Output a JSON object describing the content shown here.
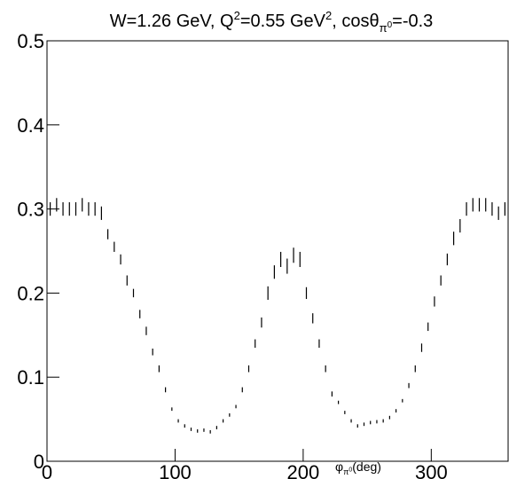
{
  "chart_data": {
    "type": "errorbar",
    "title": [
      {
        "text": "W=1.26 GeV, Q",
        "style": "normal"
      },
      {
        "text": "2",
        "style": "sup"
      },
      {
        "text": "=0.55 GeV",
        "style": "normal"
      },
      {
        "text": "2",
        "style": "sup"
      },
      {
        "text": ", cosθ",
        "style": "normal"
      },
      {
        "text": "π",
        "style": "sub"
      },
      {
        "text": "0",
        "style": "subsup"
      },
      {
        "text": "=-0.3",
        "style": "normal"
      }
    ],
    "x_label": [
      {
        "text": "φ",
        "style": "normal"
      },
      {
        "text": "π",
        "style": "sub"
      },
      {
        "text": "0",
        "style": "subsup"
      },
      {
        "text": "(deg)",
        "style": "normal"
      }
    ],
    "x": [
      2.5,
      7.5,
      12.5,
      17.5,
      22.5,
      27.5,
      32.5,
      37.5,
      42.5,
      47.5,
      52.5,
      57.5,
      62.5,
      67.5,
      72.5,
      77.5,
      82.5,
      87.5,
      92.5,
      97.5,
      102.5,
      107.5,
      112.5,
      117.5,
      122.5,
      127.5,
      132.5,
      137.5,
      142.5,
      147.5,
      152.5,
      157.5,
      162.5,
      167.5,
      172.5,
      177.5,
      182.5,
      187.5,
      192.5,
      197.5,
      202.5,
      207.5,
      212.5,
      217.5,
      222.5,
      227.5,
      232.5,
      237.5,
      242.5,
      247.5,
      252.5,
      257.5,
      262.5,
      267.5,
      272.5,
      277.5,
      282.5,
      287.5,
      292.5,
      297.5,
      302.5,
      307.5,
      312.5,
      317.5,
      322.5,
      327.5,
      332.5,
      337.5,
      342.5,
      347.5,
      352.5,
      357.5
    ],
    "values": [
      0.3,
      0.305,
      0.3,
      0.3,
      0.3,
      0.305,
      0.3,
      0.3,
      0.295,
      0.27,
      0.255,
      0.24,
      0.215,
      0.2,
      0.175,
      0.155,
      0.13,
      0.11,
      0.085,
      0.062,
      0.048,
      0.042,
      0.038,
      0.036,
      0.037,
      0.035,
      0.04,
      0.048,
      0.055,
      0.065,
      0.085,
      0.11,
      0.14,
      0.165,
      0.2,
      0.225,
      0.24,
      0.232,
      0.245,
      0.24,
      0.2,
      0.17,
      0.14,
      0.11,
      0.08,
      0.07,
      0.058,
      0.048,
      0.042,
      0.044,
      0.046,
      0.047,
      0.048,
      0.052,
      0.06,
      0.072,
      0.09,
      0.11,
      0.135,
      0.16,
      0.19,
      0.215,
      0.24,
      0.265,
      0.28,
      0.3,
      0.305,
      0.305,
      0.305,
      0.3,
      0.295,
      0.3
    ],
    "errors": [
      0.008,
      0.008,
      0.008,
      0.008,
      0.008,
      0.008,
      0.008,
      0.008,
      0.008,
      0.006,
      0.006,
      0.006,
      0.006,
      0.005,
      0.005,
      0.005,
      0.004,
      0.004,
      0.003,
      0.002,
      0.002,
      0.002,
      0.002,
      0.002,
      0.002,
      0.002,
      0.002,
      0.002,
      0.002,
      0.002,
      0.003,
      0.004,
      0.005,
      0.006,
      0.008,
      0.008,
      0.009,
      0.009,
      0.009,
      0.009,
      0.007,
      0.006,
      0.005,
      0.004,
      0.003,
      0.002,
      0.002,
      0.002,
      0.002,
      0.002,
      0.002,
      0.002,
      0.002,
      0.002,
      0.002,
      0.002,
      0.003,
      0.004,
      0.005,
      0.005,
      0.006,
      0.006,
      0.007,
      0.008,
      0.008,
      0.008,
      0.008,
      0.008,
      0.008,
      0.008,
      0.008,
      0.008
    ],
    "color": "#000000",
    "xlim": [
      0,
      360
    ],
    "xticks": [
      0,
      100,
      200,
      300
    ],
    "ylim": [
      0,
      0.5
    ],
    "yticks": [
      0,
      0.1,
      0.2,
      0.3,
      0.4,
      0.5
    ]
  }
}
